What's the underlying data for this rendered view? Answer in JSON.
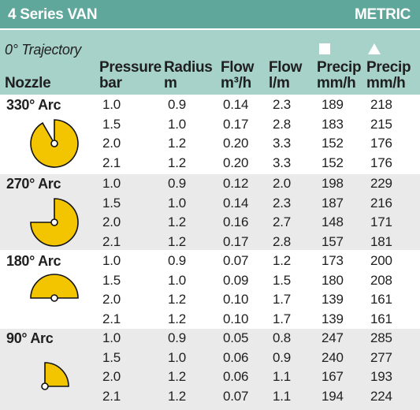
{
  "header": {
    "title": "4 Series VAN",
    "unit_system": "METRIC",
    "trajectory": "0° Trajectory",
    "nozzle_label": "Nozzle",
    "columns": [
      {
        "line1": "Pressure",
        "line2": "bar"
      },
      {
        "line1": "Radius",
        "line2": "m"
      },
      {
        "line1": "Flow",
        "line2": "m³/h"
      },
      {
        "line1": "Flow",
        "line2": "l/m"
      },
      {
        "line1": "Precip",
        "line2": "mm/h",
        "symbol": "square-icon"
      },
      {
        "line1": "Precip",
        "line2": "mm/h",
        "symbol": "triangle-icon"
      }
    ]
  },
  "colors": {
    "title_bar": "#5fa79b",
    "header_band": "#a7d2c9",
    "alt_band": "#e9eae9",
    "arc_fill": "#f2c500"
  },
  "groups": [
    {
      "arc": "330° Arc",
      "icon": "arc-330-icon",
      "rows": [
        [
          "1.0",
          "0.9",
          "0.14",
          "2.3",
          "189",
          "218"
        ],
        [
          "1.5",
          "1.0",
          "0.17",
          "2.8",
          "183",
          "215"
        ],
        [
          "2.0",
          "1.2",
          "0.20",
          "3.3",
          "152",
          "176"
        ],
        [
          "2.1",
          "1.2",
          "0.20",
          "3.3",
          "152",
          "176"
        ]
      ]
    },
    {
      "arc": "270° Arc",
      "icon": "arc-270-icon",
      "rows": [
        [
          "1.0",
          "0.9",
          "0.12",
          "2.0",
          "198",
          "229"
        ],
        [
          "1.5",
          "1.0",
          "0.14",
          "2.3",
          "187",
          "216"
        ],
        [
          "2.0",
          "1.2",
          "0.16",
          "2.7",
          "148",
          "171"
        ],
        [
          "2.1",
          "1.2",
          "0.17",
          "2.8",
          "157",
          "181"
        ]
      ]
    },
    {
      "arc": "180° Arc",
      "icon": "arc-180-icon",
      "rows": [
        [
          "1.0",
          "0.9",
          "0.07",
          "1.2",
          "173",
          "200"
        ],
        [
          "1.5",
          "1.0",
          "0.09",
          "1.5",
          "180",
          "208"
        ],
        [
          "2.0",
          "1.2",
          "0.10",
          "1.7",
          "139",
          "161"
        ],
        [
          "2.1",
          "1.2",
          "0.10",
          "1.7",
          "139",
          "161"
        ]
      ]
    },
    {
      "arc": "90° Arc",
      "icon": "arc-90-icon",
      "rows": [
        [
          "1.0",
          "0.9",
          "0.05",
          "0.8",
          "247",
          "285"
        ],
        [
          "1.5",
          "1.0",
          "0.06",
          "0.9",
          "240",
          "277"
        ],
        [
          "2.0",
          "1.2",
          "0.06",
          "1.1",
          "167",
          "193"
        ],
        [
          "2.1",
          "1.2",
          "0.07",
          "1.1",
          "194",
          "224"
        ]
      ]
    }
  ]
}
